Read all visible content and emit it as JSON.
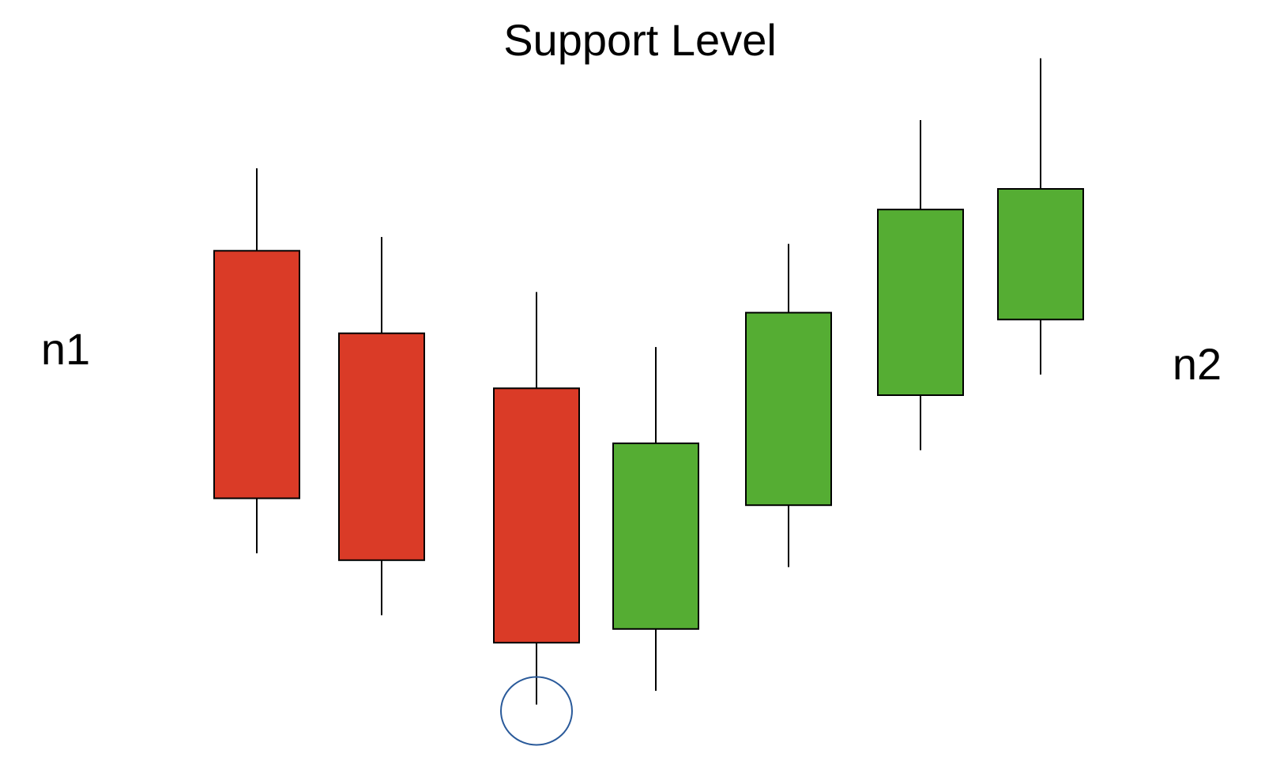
{
  "title": "Support Level",
  "left_label": "n1",
  "right_label": "n2",
  "colors": {
    "bearish": "#da3b27",
    "bullish": "#55ad33",
    "outline": "#000000",
    "marker": "#2a5a9a",
    "background": "#ffffff"
  },
  "chart_data": {
    "type": "candlestick",
    "candles": [
      {
        "high": 83,
        "open": 71,
        "close": 35,
        "low": 27,
        "direction": "bearish"
      },
      {
        "high": 73,
        "open": 59,
        "close": 26,
        "low": 18,
        "direction": "bearish"
      },
      {
        "high": 65,
        "open": 51,
        "close": 14,
        "low": 5,
        "direction": "bearish"
      },
      {
        "high": 57,
        "open": 16,
        "close": 43,
        "low": 7,
        "direction": "bullish"
      },
      {
        "high": 72,
        "open": 34,
        "close": 62,
        "low": 25,
        "direction": "bullish"
      },
      {
        "high": 90,
        "open": 50,
        "close": 77,
        "low": 42,
        "direction": "bullish"
      },
      {
        "high": 99,
        "open": 61,
        "close": 80,
        "low": 53,
        "direction": "bullish"
      }
    ],
    "highlight": {
      "candle_index": 2,
      "point": "low",
      "marker": "circle"
    }
  }
}
